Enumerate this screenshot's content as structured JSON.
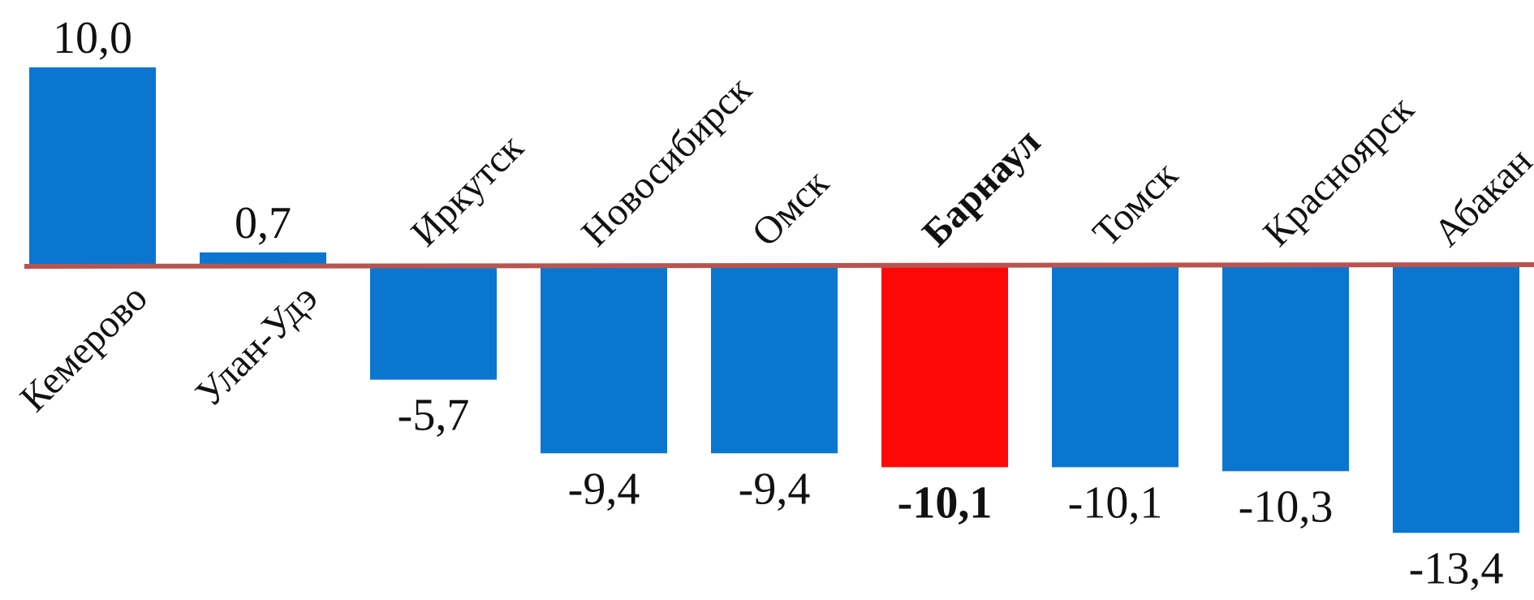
{
  "chart_data": {
    "type": "bar",
    "title": "",
    "xlabel": "",
    "ylabel": "",
    "categories": [
      "Кемерово",
      "Улан-Удэ",
      "Иркутск",
      "Новосибирск",
      "Омск",
      "Барнаул",
      "Томск",
      "Красноярск",
      "Абакан"
    ],
    "value_labels": [
      "10,0",
      "0,7",
      "-5,7",
      "-9,4",
      "-9,4",
      "-10,1",
      "-10,1",
      "-10,3",
      "-13,4"
    ],
    "values": [
      10.0,
      0.7,
      -5.7,
      -9.4,
      -9.4,
      -10.1,
      -10.1,
      -10.3,
      -13.4
    ],
    "highlight_category": "Барнаул",
    "ylim": [
      -13.4,
      10.0
    ],
    "grid": false,
    "legend": "none",
    "colors": {
      "bar": "#0B76CF",
      "highlight": "#FF0707",
      "zero_line": "#B85450"
    }
  }
}
